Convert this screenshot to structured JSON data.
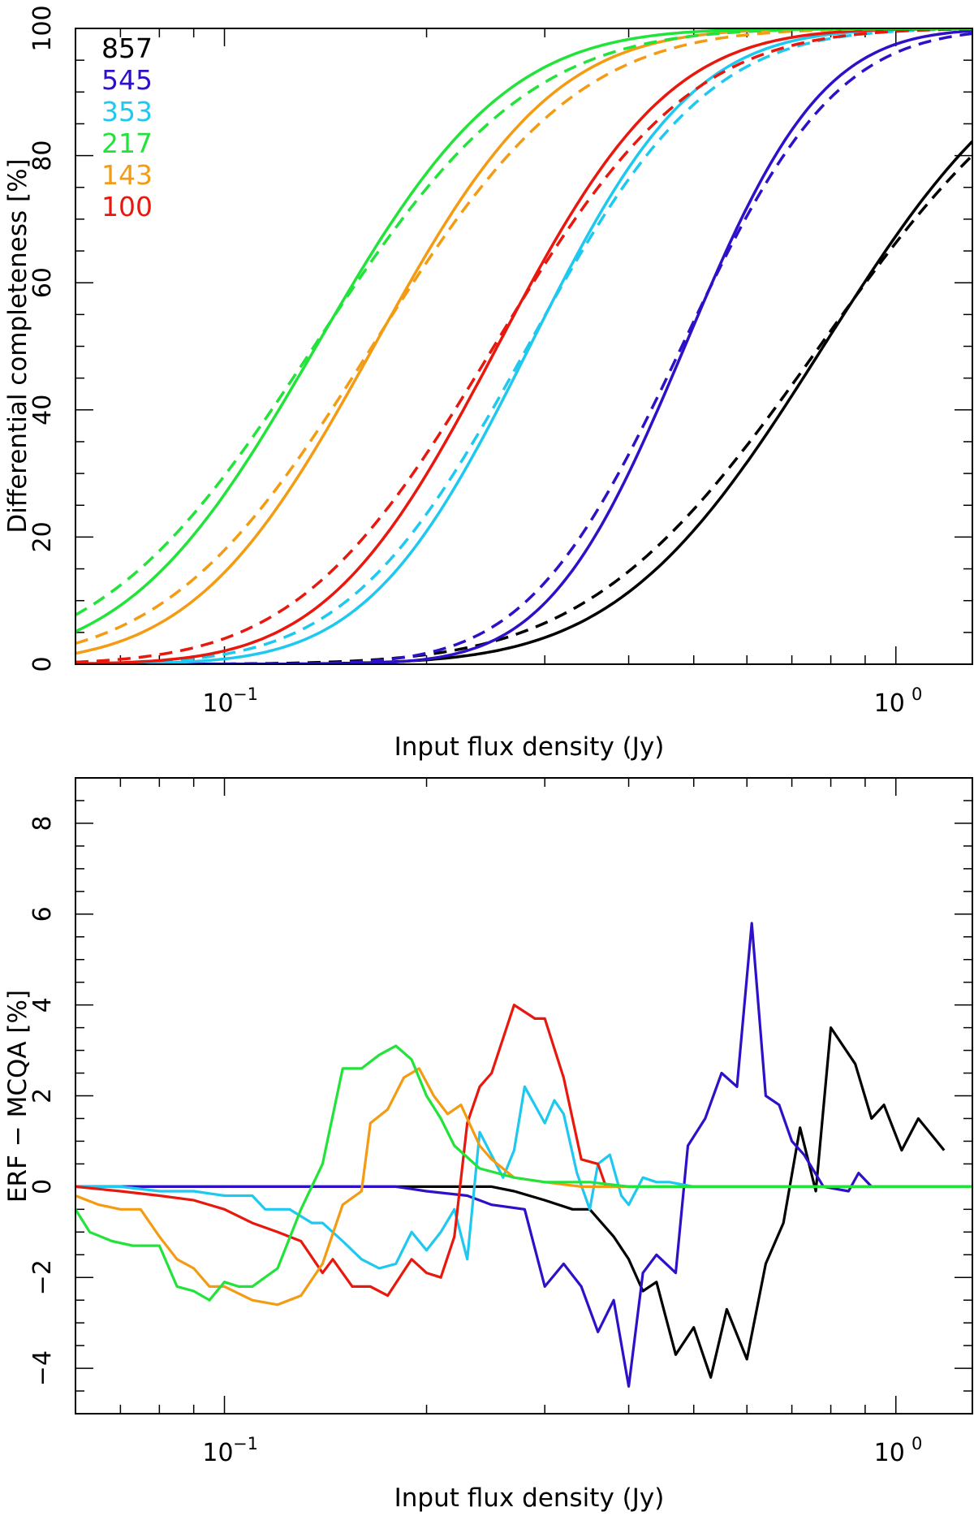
{
  "chart_data": [
    {
      "type": "line",
      "panel": "top",
      "xlabel": "Input flux density (Jy)",
      "ylabel": "Differential completeness [%]",
      "xscale": "log",
      "xlim": [
        0.06,
        1.3
      ],
      "ylim": [
        0,
        100
      ],
      "yticks": [
        0,
        20,
        40,
        60,
        80,
        100
      ],
      "ytick_labels": [
        "0",
        "20",
        "40",
        "60",
        "80",
        "100"
      ],
      "xticks": [
        {
          "value": 0.1,
          "base": "10",
          "exp": "−1"
        },
        {
          "value": 1.0,
          "base": "10",
          "exp": "0"
        }
      ],
      "legend_position": "top-left",
      "legend": [
        {
          "label": "857",
          "color": "#000000"
        },
        {
          "label": "545",
          "color": "#2e10c8"
        },
        {
          "label": "353",
          "color": "#1ec8ef"
        },
        {
          "label": "217",
          "color": "#22e33a"
        },
        {
          "label": "143",
          "color": "#f49b14"
        },
        {
          "label": "100",
          "color": "#e8180e"
        }
      ],
      "line_styles": {
        "solid": "ERF",
        "dashed": "MCQA"
      },
      "series": [
        {
          "name": "857",
          "color": "#000000",
          "mid": 0.78,
          "width": 0.24,
          "dash_mid": 0.77,
          "dash_width": 0.27
        },
        {
          "name": "545",
          "color": "#2e10c8",
          "mid": 0.485,
          "width": 0.16,
          "dash_mid": 0.48,
          "dash_width": 0.18
        },
        {
          "name": "353",
          "color": "#1ec8ef",
          "mid": 0.285,
          "width": 0.19,
          "dash_mid": 0.283,
          "dash_width": 0.21
        },
        {
          "name": "100",
          "color": "#e8180e",
          "mid": 0.255,
          "width": 0.2,
          "dash_mid": 0.252,
          "dash_width": 0.23
        },
        {
          "name": "143",
          "color": "#f49b14",
          "mid": 0.167,
          "width": 0.21,
          "dash_mid": 0.166,
          "dash_width": 0.24
        },
        {
          "name": "217",
          "color": "#22e33a",
          "mid": 0.137,
          "width": 0.22,
          "dash_mid": 0.136,
          "dash_width": 0.25
        }
      ]
    },
    {
      "type": "line",
      "panel": "bottom",
      "xlabel": "Input flux density (Jy)",
      "ylabel": "ERF − MCQA [%]",
      "xscale": "log",
      "xlim": [
        0.06,
        1.3
      ],
      "ylim": [
        -5,
        9
      ],
      "yticks": [
        -4,
        -2,
        0,
        2,
        4,
        6,
        8
      ],
      "ytick_labels": [
        "−4",
        "−2",
        "0",
        "2",
        "4",
        "6",
        "8"
      ],
      "xticks": [
        {
          "value": 0.1,
          "base": "10",
          "exp": "−1"
        },
        {
          "value": 1.0,
          "base": "10",
          "exp": "0"
        }
      ],
      "series": [
        {
          "name": "857",
          "color": "#000000",
          "points": [
            [
              0.06,
              0
            ],
            [
              0.2,
              0
            ],
            [
              0.25,
              0
            ],
            [
              0.27,
              -0.1
            ],
            [
              0.3,
              -0.3
            ],
            [
              0.33,
              -0.5
            ],
            [
              0.35,
              -0.5
            ],
            [
              0.38,
              -1.1
            ],
            [
              0.4,
              -1.6
            ],
            [
              0.42,
              -2.3
            ],
            [
              0.44,
              -2.1
            ],
            [
              0.47,
              -3.7
            ],
            [
              0.5,
              -3.1
            ],
            [
              0.53,
              -4.2
            ],
            [
              0.56,
              -2.7
            ],
            [
              0.6,
              -3.8
            ],
            [
              0.64,
              -1.7
            ],
            [
              0.68,
              -0.8
            ],
            [
              0.72,
              1.3
            ],
            [
              0.76,
              -0.1
            ],
            [
              0.8,
              3.5
            ],
            [
              0.87,
              2.7
            ],
            [
              0.92,
              1.5
            ],
            [
              0.96,
              1.8
            ],
            [
              1.02,
              0.8
            ],
            [
              1.08,
              1.5
            ],
            [
              1.18,
              0.8
            ]
          ]
        },
        {
          "name": "545",
          "color": "#2e10c8",
          "points": [
            [
              0.06,
              0
            ],
            [
              0.18,
              0
            ],
            [
              0.2,
              -0.1
            ],
            [
              0.23,
              -0.2
            ],
            [
              0.25,
              -0.4
            ],
            [
              0.28,
              -0.5
            ],
            [
              0.3,
              -2.2
            ],
            [
              0.32,
              -1.7
            ],
            [
              0.34,
              -2.2
            ],
            [
              0.36,
              -3.2
            ],
            [
              0.38,
              -2.5
            ],
            [
              0.4,
              -4.4
            ],
            [
              0.42,
              -1.9
            ],
            [
              0.44,
              -1.5
            ],
            [
              0.47,
              -1.9
            ],
            [
              0.49,
              0.9
            ],
            [
              0.52,
              1.5
            ],
            [
              0.55,
              2.5
            ],
            [
              0.58,
              2.2
            ],
            [
              0.61,
              5.8
            ],
            [
              0.64,
              2.0
            ],
            [
              0.67,
              1.8
            ],
            [
              0.7,
              1.0
            ],
            [
              0.73,
              0.7
            ],
            [
              0.78,
              0
            ],
            [
              0.85,
              -0.1
            ],
            [
              0.88,
              0.3
            ],
            [
              0.92,
              0
            ],
            [
              1.3,
              0
            ]
          ]
        },
        {
          "name": "353",
          "color": "#1ec8ef",
          "points": [
            [
              0.06,
              0
            ],
            [
              0.07,
              0
            ],
            [
              0.08,
              -0.1
            ],
            [
              0.09,
              -0.1
            ],
            [
              0.1,
              -0.2
            ],
            [
              0.11,
              -0.2
            ],
            [
              0.115,
              -0.5
            ],
            [
              0.125,
              -0.5
            ],
            [
              0.135,
              -0.8
            ],
            [
              0.14,
              -0.8
            ],
            [
              0.15,
              -1.2
            ],
            [
              0.16,
              -1.6
            ],
            [
              0.17,
              -1.8
            ],
            [
              0.18,
              -1.7
            ],
            [
              0.19,
              -1.0
            ],
            [
              0.2,
              -1.4
            ],
            [
              0.21,
              -1.0
            ],
            [
              0.22,
              -0.5
            ],
            [
              0.23,
              -1.6
            ],
            [
              0.24,
              1.2
            ],
            [
              0.26,
              0.2
            ],
            [
              0.27,
              0.8
            ],
            [
              0.28,
              2.2
            ],
            [
              0.3,
              1.4
            ],
            [
              0.31,
              1.9
            ],
            [
              0.32,
              1.6
            ],
            [
              0.335,
              0.3
            ],
            [
              0.35,
              -0.5
            ],
            [
              0.36,
              0.5
            ],
            [
              0.375,
              0.7
            ],
            [
              0.39,
              -0.2
            ],
            [
              0.4,
              -0.4
            ],
            [
              0.42,
              0.2
            ],
            [
              0.44,
              0.1
            ],
            [
              0.46,
              0.1
            ],
            [
              0.5,
              0
            ],
            [
              1.3,
              0
            ]
          ]
        },
        {
          "name": "100",
          "color": "#e8180e",
          "points": [
            [
              0.06,
              0
            ],
            [
              0.07,
              -0.1
            ],
            [
              0.08,
              -0.2
            ],
            [
              0.09,
              -0.3
            ],
            [
              0.1,
              -0.5
            ],
            [
              0.11,
              -0.8
            ],
            [
              0.12,
              -1.0
            ],
            [
              0.13,
              -1.2
            ],
            [
              0.14,
              -1.9
            ],
            [
              0.145,
              -1.6
            ],
            [
              0.155,
              -2.2
            ],
            [
              0.165,
              -2.2
            ],
            [
              0.175,
              -2.4
            ],
            [
              0.19,
              -1.6
            ],
            [
              0.2,
              -1.9
            ],
            [
              0.21,
              -2.0
            ],
            [
              0.22,
              -1.1
            ],
            [
              0.23,
              1.4
            ],
            [
              0.24,
              2.2
            ],
            [
              0.25,
              2.5
            ],
            [
              0.27,
              4.0
            ],
            [
              0.29,
              3.7
            ],
            [
              0.3,
              3.7
            ],
            [
              0.32,
              2.4
            ],
            [
              0.34,
              0.6
            ],
            [
              0.36,
              0.5
            ],
            [
              0.37,
              0
            ],
            [
              0.4,
              0
            ],
            [
              0.43,
              0
            ],
            [
              0.47,
              0
            ],
            [
              0.5,
              0
            ],
            [
              0.6,
              0
            ],
            [
              1.3,
              0
            ]
          ]
        },
        {
          "name": "143",
          "color": "#f49b14",
          "points": [
            [
              0.06,
              -0.2
            ],
            [
              0.065,
              -0.4
            ],
            [
              0.07,
              -0.5
            ],
            [
              0.075,
              -0.5
            ],
            [
              0.08,
              -1.1
            ],
            [
              0.085,
              -1.6
            ],
            [
              0.09,
              -1.8
            ],
            [
              0.095,
              -2.2
            ],
            [
              0.1,
              -2.2
            ],
            [
              0.11,
              -2.5
            ],
            [
              0.12,
              -2.6
            ],
            [
              0.13,
              -2.4
            ],
            [
              0.14,
              -1.7
            ],
            [
              0.15,
              -0.4
            ],
            [
              0.16,
              -0.1
            ],
            [
              0.165,
              1.4
            ],
            [
              0.175,
              1.7
            ],
            [
              0.185,
              2.4
            ],
            [
              0.195,
              2.6
            ],
            [
              0.205,
              2.0
            ],
            [
              0.215,
              1.6
            ],
            [
              0.225,
              1.8
            ],
            [
              0.24,
              0.9
            ],
            [
              0.25,
              0.6
            ],
            [
              0.27,
              0.2
            ],
            [
              0.3,
              0.1
            ],
            [
              0.34,
              0
            ],
            [
              0.4,
              0
            ],
            [
              1.3,
              0
            ]
          ]
        },
        {
          "name": "217",
          "color": "#22e33a",
          "points": [
            [
              0.06,
              -0.5
            ],
            [
              0.063,
              -1.0
            ],
            [
              0.068,
              -1.2
            ],
            [
              0.073,
              -1.3
            ],
            [
              0.08,
              -1.3
            ],
            [
              0.085,
              -2.2
            ],
            [
              0.09,
              -2.3
            ],
            [
              0.095,
              -2.5
            ],
            [
              0.1,
              -2.1
            ],
            [
              0.105,
              -2.2
            ],
            [
              0.11,
              -2.2
            ],
            [
              0.12,
              -1.8
            ],
            [
              0.13,
              -0.5
            ],
            [
              0.14,
              0.5
            ],
            [
              0.15,
              2.6
            ],
            [
              0.16,
              2.6
            ],
            [
              0.17,
              2.9
            ],
            [
              0.18,
              3.1
            ],
            [
              0.19,
              2.8
            ],
            [
              0.2,
              2.0
            ],
            [
              0.21,
              1.5
            ],
            [
              0.22,
              0.9
            ],
            [
              0.24,
              0.4
            ],
            [
              0.27,
              0.2
            ],
            [
              0.3,
              0.1
            ],
            [
              0.35,
              0.1
            ],
            [
              0.4,
              0
            ],
            [
              1.3,
              0
            ]
          ]
        }
      ]
    }
  ]
}
